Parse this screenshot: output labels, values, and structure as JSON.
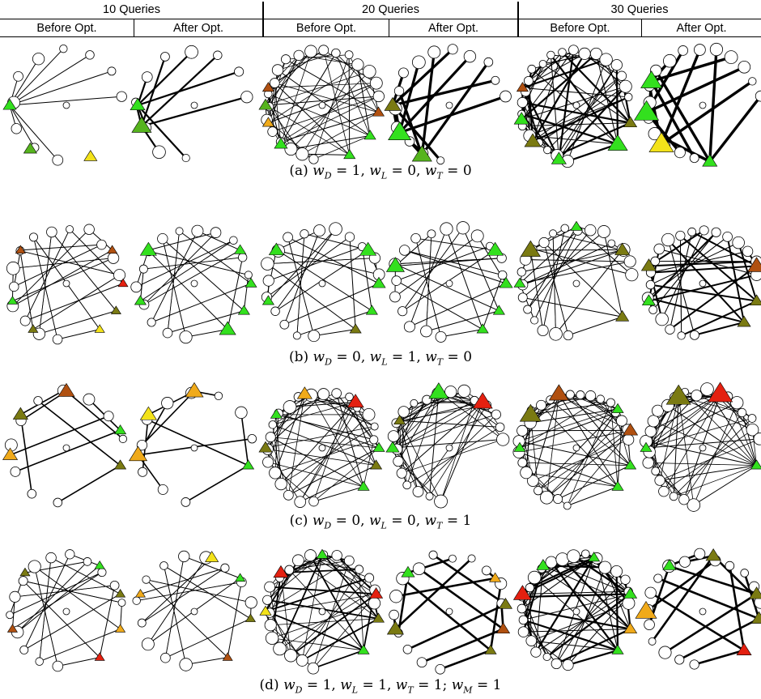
{
  "header": {
    "groups": [
      "10 Queries",
      "20 Queries",
      "30 Queries"
    ],
    "sub_labels": [
      "Before Opt.",
      "After Opt."
    ]
  },
  "captions": [
    {
      "letter": "(a)",
      "wD": "1",
      "wL": "0",
      "wT": "0"
    },
    {
      "letter": "(b)",
      "wD": "0",
      "wL": "1",
      "wT": "0"
    },
    {
      "letter": "(c)",
      "wD": "0",
      "wL": "0",
      "wT": "1"
    },
    {
      "letter": "(d)",
      "wD": "1",
      "wL": "1",
      "wT": "1",
      "wM": "1"
    }
  ],
  "colors": {
    "node_fill": "#ffffff",
    "edge": "#000000",
    "bright_green": "#33e01e",
    "yellow_green": "#56b41e",
    "olive": "#7a7a12",
    "mustard": "#c7a31a",
    "yellow": "#f3e21a",
    "orange": "#f0aa1a",
    "brown": "#b05010",
    "red": "#e42010"
  },
  "graphs": [
    {
      "row": 0,
      "col": 0,
      "nodes": 10,
      "tri": [
        [
          "bright_green",
          0.5,
          8
        ],
        [
          "yellow_green",
          0.36,
          8
        ],
        [
          "yellow",
          0.18,
          8
        ]
      ],
      "edges": "sparse",
      "thick": 1
    },
    {
      "row": 0,
      "col": 1,
      "nodes": 10,
      "tri": [
        [
          "bright_green",
          0.5,
          9
        ],
        [
          "yellow_green",
          0.44,
          12
        ]
      ],
      "edges": "fan",
      "thick": 2.2
    },
    {
      "row": 0,
      "col": 2,
      "nodes": 20,
      "tri": [
        [
          "bright_green",
          0.38,
          8
        ],
        [
          "bright_green",
          0.17,
          7
        ],
        [
          "bright_green",
          0.09,
          7
        ],
        [
          "brown",
          0.02,
          7
        ],
        [
          "orange",
          0.45,
          7
        ],
        [
          "yellow_green",
          0.5,
          8
        ],
        [
          "brown",
          0.55,
          7
        ]
      ],
      "edges": "dense",
      "thick": 1
    },
    {
      "row": 0,
      "col": 3,
      "nodes": 14,
      "tri": [
        [
          "olive",
          0.5,
          10
        ],
        [
          "bright_green",
          0.42,
          14
        ],
        [
          "yellow_green",
          0.33,
          12
        ]
      ],
      "edges": "fan",
      "thick": 3.2
    },
    {
      "row": 0,
      "col": 4,
      "nodes": 22,
      "tri": [
        [
          "bright_green",
          0.12,
          12
        ],
        [
          "olive",
          0.05,
          8
        ],
        [
          "bright_green",
          0.3,
          9
        ],
        [
          "olive",
          0.39,
          10
        ],
        [
          "bright_green",
          0.46,
          9
        ],
        [
          "brown",
          0.55,
          7
        ]
      ],
      "edges": "dense",
      "thick": 2.2
    },
    {
      "row": 0,
      "col": 5,
      "nodes": 16,
      "tri": [
        [
          "bright_green",
          0.57,
          13
        ],
        [
          "bright_green",
          0.48,
          15
        ],
        [
          "yellow",
          0.38,
          15
        ],
        [
          "bright_green",
          0.23,
          9
        ]
      ],
      "edges": "fan",
      "thick": 3.4
    },
    {
      "row": 1,
      "col": 0,
      "nodes": 14,
      "tri": [
        [
          "yellow",
          0.15,
          6
        ],
        [
          "olive",
          0.08,
          6
        ],
        [
          "red",
          0.0,
          6
        ],
        [
          "brown",
          0.9,
          6
        ],
        [
          "brown",
          0.6,
          6
        ],
        [
          "bright_green",
          0.45,
          6
        ],
        [
          "olive",
          0.35,
          6
        ]
      ],
      "edges": "star",
      "thick": 1
    },
    {
      "row": 1,
      "col": 1,
      "nodes": 14,
      "tri": [
        [
          "bright_green",
          0.15,
          10
        ],
        [
          "bright_green",
          0.08,
          7
        ],
        [
          "bright_green",
          0.0,
          7
        ],
        [
          "bright_green",
          0.9,
          7
        ],
        [
          "bright_green",
          0.6,
          10
        ],
        [
          "bright_green",
          0.45,
          7
        ]
      ],
      "edges": "star",
      "thick": 1
    },
    {
      "row": 1,
      "col": 2,
      "nodes": 16,
      "tri": [
        [
          "olive",
          0.15,
          7
        ],
        [
          "bright_green",
          0.08,
          7
        ],
        [
          "bright_green",
          0.0,
          8
        ],
        [
          "bright_green",
          0.9,
          10
        ],
        [
          "bright_green",
          0.6,
          9
        ],
        [
          "bright_green",
          0.45,
          7
        ]
      ],
      "edges": "star",
      "thick": 1
    },
    {
      "row": 1,
      "col": 3,
      "nodes": 16,
      "tri": [
        [
          "bright_green",
          0.15,
          7
        ],
        [
          "bright_green",
          0.08,
          7
        ],
        [
          "bright_green",
          0.0,
          8
        ],
        [
          "bright_green",
          0.9,
          10
        ],
        [
          "bright_green",
          0.55,
          11
        ]
      ],
      "edges": "star",
      "thick": 1
    },
    {
      "row": 1,
      "col": 4,
      "nodes": 20,
      "tri": [
        [
          "olive",
          0.1,
          8
        ],
        [
          "olive",
          0.9,
          9
        ],
        [
          "olive",
          0.6,
          12
        ],
        [
          "bright_green",
          0.5,
          7
        ],
        [
          "bright_green",
          0.75,
          7
        ]
      ],
      "edges": "star",
      "thick": 1
    },
    {
      "row": 1,
      "col": 5,
      "nodes": 20,
      "tri": [
        [
          "olive",
          0.12,
          8
        ],
        [
          "olive",
          0.05,
          8
        ],
        [
          "brown",
          0.95,
          11
        ],
        [
          "olive",
          0.55,
          9
        ],
        [
          "bright_green",
          0.45,
          8
        ]
      ],
      "edges": "star",
      "thick": 2
    },
    {
      "row": 2,
      "col": 0,
      "nodes": 10,
      "tri": [
        [
          "olive",
          0.05,
          7
        ],
        [
          "bright_green",
          0.95,
          7
        ],
        [
          "brown",
          0.75,
          10
        ],
        [
          "olive",
          0.6,
          9
        ],
        [
          "orange",
          0.48,
          9
        ]
      ],
      "edges": "sparse",
      "thick": 1.6
    },
    {
      "row": 2,
      "col": 1,
      "nodes": 10,
      "tri": [
        [
          "bright_green",
          0.05,
          7
        ],
        [
          "orange",
          0.75,
          11
        ],
        [
          "yellow",
          0.6,
          10
        ],
        [
          "orange",
          0.48,
          11
        ]
      ],
      "edges": "sparse",
      "thick": 1.6
    },
    {
      "row": 2,
      "col": 2,
      "nodes": 20,
      "tri": [
        [
          "bright_green",
          0.12,
          7
        ],
        [
          "olive",
          0.05,
          7
        ],
        [
          "bright_green",
          0.0,
          7
        ],
        [
          "red",
          0.85,
          10
        ],
        [
          "orange",
          0.7,
          9
        ],
        [
          "bright_green",
          0.6,
          7
        ],
        [
          "olive",
          0.5,
          8
        ]
      ],
      "edges": "dense",
      "thick": 1
    },
    {
      "row": 2,
      "col": 3,
      "nodes": 20,
      "tri": [
        [
          "red",
          0.85,
          12
        ],
        [
          "bright_green",
          0.72,
          12
        ],
        [
          "olive",
          0.58,
          7
        ],
        [
          "bright_green",
          0.5,
          8
        ]
      ],
      "edges": "dense",
      "thick": 1
    },
    {
      "row": 2,
      "col": 4,
      "nodes": 24,
      "tri": [
        [
          "bright_green",
          0.12,
          7
        ],
        [
          "bright_green",
          0.05,
          7
        ],
        [
          "brown",
          0.95,
          9
        ],
        [
          "bright_green",
          0.88,
          7
        ],
        [
          "brown",
          0.7,
          12
        ],
        [
          "olive",
          0.6,
          13
        ],
        [
          "bright_green",
          0.5,
          7
        ]
      ],
      "edges": "dense",
      "thick": 1
    },
    {
      "row": 2,
      "col": 5,
      "nodes": 24,
      "tri": [
        [
          "bright_green",
          0.05,
          7
        ],
        [
          "red",
          0.8,
          15
        ],
        [
          "olive",
          0.68,
          15
        ],
        [
          "bright_green",
          0.5,
          7
        ]
      ],
      "edges": "dense",
      "thick": 1
    },
    {
      "row": 3,
      "col": 0,
      "nodes": 14,
      "tri": [
        [
          "red",
          0.15,
          6
        ],
        [
          "orange",
          0.05,
          6
        ],
        [
          "olive",
          0.95,
          6
        ],
        [
          "bright_green",
          0.85,
          6
        ],
        [
          "olive",
          0.62,
          6
        ],
        [
          "brown",
          0.45,
          6
        ]
      ],
      "edges": "star",
      "thick": 1
    },
    {
      "row": 3,
      "col": 1,
      "nodes": 12,
      "tri": [
        [
          "brown",
          0.15,
          6
        ],
        [
          "olive",
          0.02,
          6
        ],
        [
          "bright_green",
          0.9,
          6
        ],
        [
          "yellow",
          0.8,
          8
        ],
        [
          "orange",
          0.55,
          6
        ]
      ],
      "edges": "star",
      "thick": 1
    },
    {
      "row": 3,
      "col": 2,
      "nodes": 20,
      "tri": [
        [
          "bright_green",
          0.12,
          7
        ],
        [
          "olive",
          0.02,
          7
        ],
        [
          "red",
          0.95,
          8
        ],
        [
          "bright_green",
          0.75,
          7
        ],
        [
          "red",
          0.62,
          9
        ],
        [
          "yellow",
          0.5,
          7
        ]
      ],
      "edges": "dense",
      "thick": 1.8
    },
    {
      "row": 3,
      "col": 3,
      "nodes": 14,
      "tri": [
        [
          "olive",
          0.12,
          7
        ],
        [
          "brown",
          0.05,
          8
        ],
        [
          "olive",
          0.98,
          8
        ],
        [
          "bright_green",
          0.62,
          8
        ],
        [
          "olive",
          0.45,
          10
        ],
        [
          "orange",
          0.9,
          7
        ]
      ],
      "edges": "fan",
      "thick": 2.6
    },
    {
      "row": 3,
      "col": 4,
      "nodes": 22,
      "tri": [
        [
          "bright_green",
          0.12,
          7
        ],
        [
          "orange",
          0.05,
          8
        ],
        [
          "bright_green",
          0.95,
          8
        ],
        [
          "bright_green",
          0.8,
          7
        ],
        [
          "red",
          0.55,
          11
        ],
        [
          "bright_green",
          0.65,
          8
        ]
      ],
      "edges": "dense",
      "thick": 2.2
    },
    {
      "row": 3,
      "col": 5,
      "nodes": 16,
      "tri": [
        [
          "red",
          0.12,
          9
        ],
        [
          "olive",
          0.02,
          9
        ],
        [
          "olive",
          0.95,
          9
        ],
        [
          "olive",
          0.78,
          9
        ],
        [
          "bright_green",
          0.65,
          8
        ],
        [
          "orange",
          0.5,
          13
        ]
      ],
      "edges": "fan",
      "thick": 2.6
    }
  ]
}
